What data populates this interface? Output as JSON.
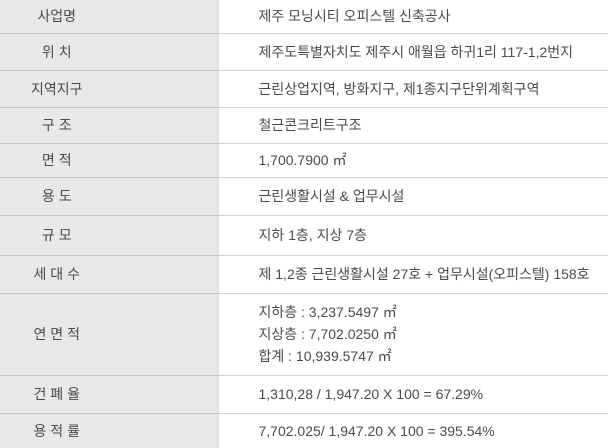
{
  "table": {
    "colors": {
      "label_bg": "#e8e8e6",
      "value_bg": "#ffffff",
      "border": "#c6c6c4",
      "text": "#4a4a4a"
    },
    "rows": [
      {
        "label": "사업명",
        "values": [
          "제주 모닝시티 오피스텔 신축공사"
        ]
      },
      {
        "label": "위 치",
        "values": [
          "제주도특별자치도 제주시 애월읍 하귀1리 117-1,2번지"
        ]
      },
      {
        "label": "지역지구",
        "values": [
          "근린상업지역, 방화지구, 제1종지구단위계획구역"
        ]
      },
      {
        "label": "구 조",
        "values": [
          "철근콘크리트구조"
        ]
      },
      {
        "label": "면 적",
        "values": [
          "1,700.7900 ㎡"
        ]
      },
      {
        "label": "용 도",
        "values": [
          "근린생활시설 & 업무시설"
        ]
      },
      {
        "label": "규 모",
        "values": [
          "지하 1층, 지상 7층"
        ]
      },
      {
        "label": "세 대 수",
        "values": [
          "제 1,2종 근린생활시설 27호 + 업무시설(오피스텔) 158호"
        ]
      },
      {
        "label": "연 면 적",
        "values": [
          "지하층 : 3,237.5497  ㎡",
          "지상층 : 7,702.0250  ㎡",
          "합계 : 10,939.5747  ㎡"
        ]
      },
      {
        "label": "건 폐 율",
        "values": [
          "1,310,28 / 1,947.20 X 100 = 67.29%"
        ]
      },
      {
        "label": "용 적 률",
        "values": [
          "7,702.025/ 1,947.20 X 100 = 395.54%"
        ]
      }
    ]
  }
}
